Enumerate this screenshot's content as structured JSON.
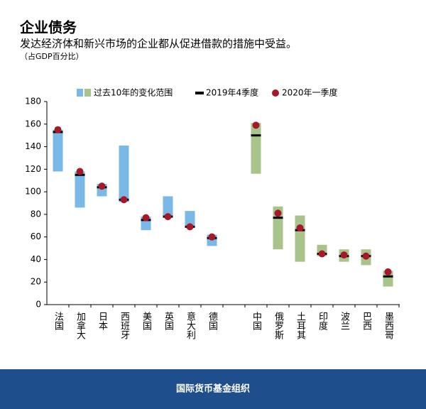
{
  "chart_data": {
    "type": "range",
    "title": "企业债务",
    "subtitle": "发达经济体和新兴市场的企业都从促进借款的措施中受益。",
    "note": "（占GDP百分比）",
    "footer": "国际货币基金组织",
    "categories": [
      "法国",
      "加拿大",
      "日本",
      "西班牙",
      "美国",
      "英国",
      "意大利",
      "德国",
      null,
      "中国",
      "俄罗斯",
      "土耳其",
      "印度",
      "波兰",
      "巴西",
      "墨西哥"
    ],
    "ylim": [
      0,
      180
    ],
    "yticks": [
      0,
      20,
      40,
      60,
      80,
      100,
      120,
      140,
      160,
      180
    ],
    "range": {
      "name": "过去10年的变化范围",
      "colors": [
        "#7ab8e8",
        "#7ab8e8",
        "#7ab8e8",
        "#7ab8e8",
        "#7ab8e8",
        "#7ab8e8",
        "#7ab8e8",
        "#7ab8e8",
        null,
        "#a9c48a",
        "#a9c48a",
        "#a9c48a",
        "#a9c48a",
        "#a9c48a",
        "#a9c48a",
        "#a9c48a"
      ],
      "low": [
        118,
        86,
        96,
        91,
        66,
        77,
        69,
        52,
        null,
        116,
        49,
        38,
        43,
        38,
        35,
        16
      ],
      "high": [
        155,
        118,
        107,
        141,
        78,
        96,
        83,
        62,
        null,
        161,
        87,
        79,
        53,
        49,
        49,
        30
      ]
    },
    "series": [
      {
        "name": "2019年4季度",
        "color": "#000000",
        "marker": "dash",
        "values": [
          153,
          115,
          104,
          93,
          75,
          78,
          69,
          59,
          null,
          150,
          77,
          66,
          45,
          43,
          43,
          25
        ]
      },
      {
        "name": "2020年一季度",
        "color": "#a5192b",
        "marker": "dot",
        "values": [
          155,
          118,
          105,
          93,
          77,
          78,
          69,
          60,
          null,
          159,
          81,
          68,
          45,
          44,
          43,
          29
        ]
      }
    ]
  }
}
